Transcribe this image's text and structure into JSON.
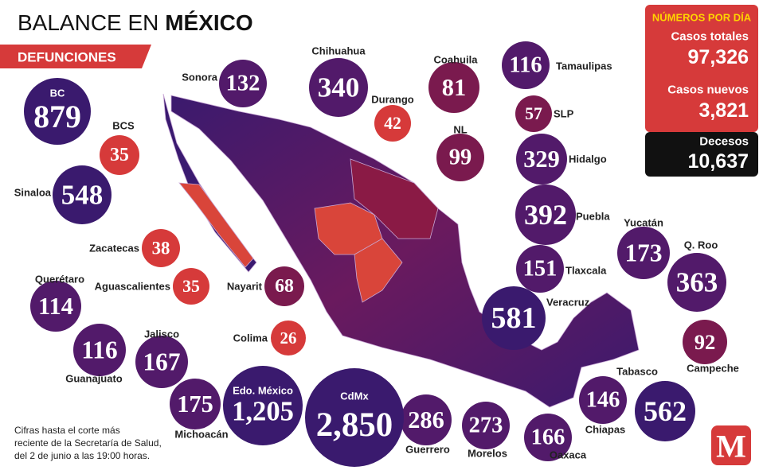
{
  "header": {
    "title_a": "BALANCE EN",
    "title_b": "MÉXICO",
    "subtitle": "DEFUNCIONES"
  },
  "summary": {
    "title": "NÚMEROS POR DÍA",
    "rows": [
      {
        "label": "Casos totales",
        "value": "97,326"
      },
      {
        "label": "Casos nuevos",
        "value": "3,821"
      },
      {
        "label": "Decesos",
        "value": "10,637"
      }
    ]
  },
  "states": [
    {
      "name": "BC",
      "value": "879"
    },
    {
      "name": "BCS",
      "value": "35"
    },
    {
      "name": "Sonora",
      "value": "132"
    },
    {
      "name": "Chihuahua",
      "value": "340"
    },
    {
      "name": "Durango",
      "value": "42"
    },
    {
      "name": "Coahuila",
      "value": "81"
    },
    {
      "name": "NL",
      "value": "99"
    },
    {
      "name": "Tamaulipas",
      "value": "116"
    },
    {
      "name": "SLP",
      "value": "57"
    },
    {
      "name": "Hidalgo",
      "value": "329"
    },
    {
      "name": "Puebla",
      "value": "392"
    },
    {
      "name": "Tlaxcala",
      "value": "151"
    },
    {
      "name": "Veracruz",
      "value": "581"
    },
    {
      "name": "Yucatán",
      "value": "173"
    },
    {
      "name": "Q. Roo",
      "value": "363"
    },
    {
      "name": "Campeche",
      "value": "92"
    },
    {
      "name": "Tabasco",
      "value": "562"
    },
    {
      "name": "Chiapas",
      "value": "146"
    },
    {
      "name": "Oaxaca",
      "value": "166"
    },
    {
      "name": "Morelos",
      "value": "273"
    },
    {
      "name": "Guerrero",
      "value": "286"
    },
    {
      "name": "CdMx",
      "value": "2,850"
    },
    {
      "name": "Edo. México",
      "value": "1,205"
    },
    {
      "name": "Michoacán",
      "value": "175"
    },
    {
      "name": "Jalisco",
      "value": "167"
    },
    {
      "name": "Guanajuato",
      "value": "116"
    },
    {
      "name": "Querétaro",
      "value": "114"
    },
    {
      "name": "Colima",
      "value": "26"
    },
    {
      "name": "Nayarit",
      "value": "68"
    },
    {
      "name": "Aguascalientes",
      "value": "35"
    },
    {
      "name": "Zacatecas",
      "value": "38"
    },
    {
      "name": "Sinaloa",
      "value": "548"
    }
  ],
  "note": [
    "Cifras hasta el corte más",
    "reciente de la Secretaría de Salud,",
    "del 2 de junio a las 19:00 horas."
  ],
  "logo": "M"
}
